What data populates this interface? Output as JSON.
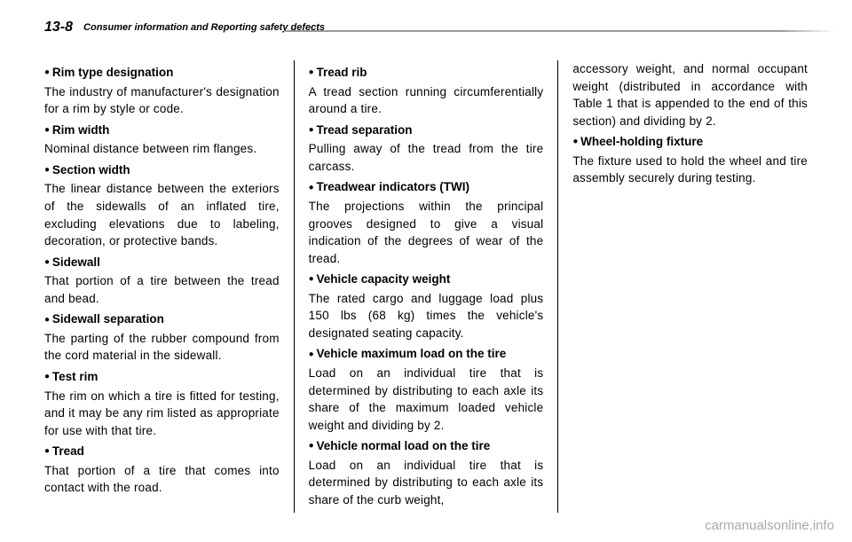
{
  "header": {
    "pageNumber": "13-8",
    "sectionTitle": "Consumer information and Reporting safety defects"
  },
  "columns": [
    [
      {
        "term": "Rim type designation",
        "def": "The industry of manufacturer's designation for a rim by style or code."
      },
      {
        "term": "Rim width",
        "def": "Nominal distance between rim flanges."
      },
      {
        "term": "Section width",
        "def": "The linear distance between the exteriors of the sidewalls of an inflated tire, excluding elevations due to labeling, decoration, or protective bands."
      },
      {
        "term": "Sidewall",
        "def": "That portion of a tire between the tread and bead."
      },
      {
        "term": "Sidewall separation",
        "def": "The parting of the rubber compound from the cord material in the sidewall."
      },
      {
        "term": "Test rim",
        "def": "The rim on which a tire is fitted for testing, and it may be any rim listed as appropriate for use with that tire."
      },
      {
        "term": "Tread",
        "def": "That portion of a tire that comes into contact with the road."
      }
    ],
    [
      {
        "term": "Tread rib",
        "def": "A tread section running circumferentially around a tire."
      },
      {
        "term": "Tread separation",
        "def": "Pulling away of the tread from the tire carcass."
      },
      {
        "term": "Treadwear indicators (TWI)",
        "def": "The projections within the principal grooves designed to give a visual indication of the degrees of wear of the tread."
      },
      {
        "term": "Vehicle capacity weight",
        "def": "The rated cargo and luggage load plus 150 lbs (68 kg) times the vehicle's designated seating capacity."
      },
      {
        "term": "Vehicle maximum load on the tire",
        "def": "Load on an individual tire that is determined by distributing to each axle its share of the maximum loaded vehicle weight and dividing by 2."
      },
      {
        "term": "Vehicle normal load on the tire",
        "def": "Load on an individual tire that is determined by distributing to each axle its share of the curb weight,"
      }
    ],
    [
      {
        "def": "accessory weight, and normal occupant weight (distributed in accordance with Table 1 that is appended to the end of this section) and dividing by 2."
      },
      {
        "term": "Wheel-holding fixture",
        "def": "The fixture used to hold the wheel and tire assembly securely during testing."
      }
    ]
  ],
  "watermark": "carmanualsonline.info"
}
